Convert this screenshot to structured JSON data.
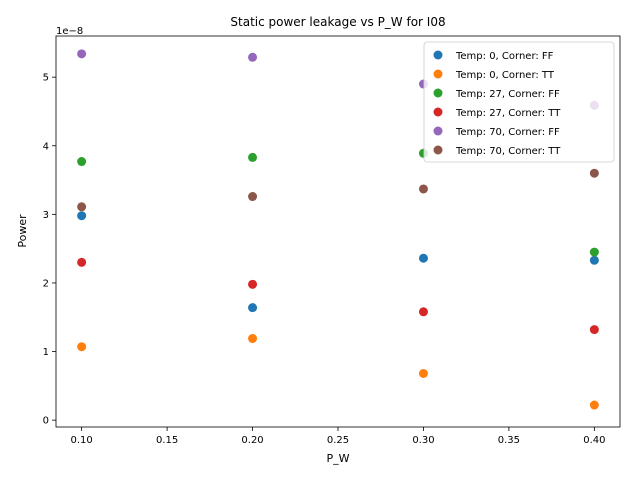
{
  "chart_data": {
    "type": "scatter",
    "title": "Static power leakage vs P_W for I08",
    "xlabel": "P_W",
    "ylabel": "Power",
    "y_offset_text": "1e−8",
    "xlim": [
      0.085,
      0.415
    ],
    "ylim": [
      -1e-09,
      5.6e-08
    ],
    "x_ticks": [
      "0.10",
      "0.15",
      "0.20",
      "0.25",
      "0.30",
      "0.35",
      "0.40"
    ],
    "y_ticks": [
      "0",
      "1",
      "2",
      "3",
      "4",
      "5"
    ],
    "grid": false,
    "legend_position": "top-right",
    "series": [
      {
        "name": "Temp: 0, Corner: FF",
        "color": "#1f77b4",
        "x": [
          0.1,
          0.2,
          0.3,
          0.4
        ],
        "y": [
          2.98e-08,
          1.64e-08,
          2.36e-08,
          2.33e-08
        ]
      },
      {
        "name": "Temp: 0, Corner: TT",
        "color": "#ff7f0e",
        "x": [
          0.1,
          0.2,
          0.3,
          0.4
        ],
        "y": [
          1.07e-08,
          1.19e-08,
          6.8e-09,
          2.2e-09
        ]
      },
      {
        "name": "Temp: 27, Corner: FF",
        "color": "#2ca02c",
        "x": [
          0.1,
          0.2,
          0.3,
          0.4
        ],
        "y": [
          3.77e-08,
          3.83e-08,
          3.89e-08,
          2.45e-08
        ]
      },
      {
        "name": "Temp: 27, Corner: TT",
        "color": "#d62728",
        "x": [
          0.1,
          0.2,
          0.3,
          0.4
        ],
        "y": [
          2.3e-08,
          1.98e-08,
          1.58e-08,
          1.32e-08
        ]
      },
      {
        "name": "Temp: 70, Corner: FF",
        "color": "#9467bd",
        "x": [
          0.1,
          0.2,
          0.3,
          0.4
        ],
        "y": [
          5.34e-08,
          5.29e-08,
          4.9e-08,
          4.59e-08
        ]
      },
      {
        "name": "Temp: 70, Corner: TT",
        "color": "#8c564b",
        "x": [
          0.1,
          0.2,
          0.3,
          0.4
        ],
        "y": [
          3.11e-08,
          3.26e-08,
          3.37e-08,
          3.6e-08
        ]
      }
    ]
  }
}
